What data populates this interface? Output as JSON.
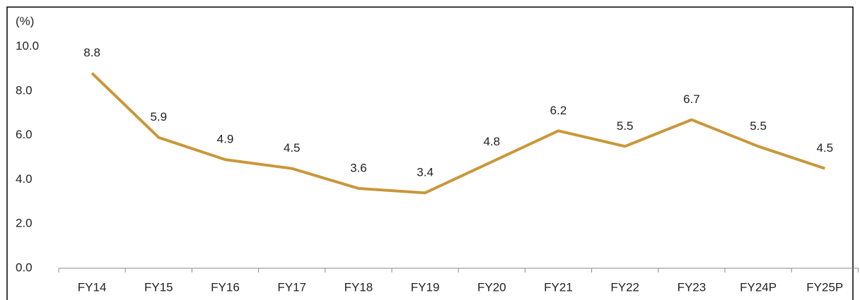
{
  "chart_data": {
    "type": "line",
    "y_axis_label": "(%)",
    "categories": [
      "FY14",
      "FY15",
      "FY16",
      "FY17",
      "FY18",
      "FY19",
      "FY20",
      "FY21",
      "FY22",
      "FY23",
      "FY24P",
      "FY25P"
    ],
    "values": [
      8.8,
      5.9,
      4.9,
      4.5,
      3.6,
      3.4,
      4.8,
      6.2,
      5.5,
      6.7,
      5.5,
      4.5
    ],
    "color": "#c9973a",
    "ylim": [
      0,
      10
    ],
    "yticks": [
      {
        "value": 0,
        "label": "0.0"
      },
      {
        "value": 2,
        "label": "2.0"
      },
      {
        "value": 4,
        "label": "4.0"
      },
      {
        "value": 6,
        "label": "6.0"
      },
      {
        "value": 8,
        "label": "8.0"
      },
      {
        "value": 10,
        "label": "10.0"
      }
    ],
    "grid": false
  }
}
